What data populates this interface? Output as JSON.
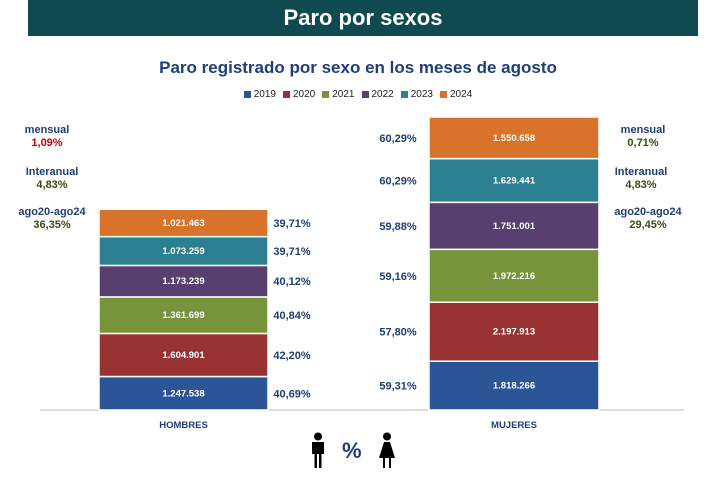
{
  "header": {
    "title": "Paro por sexos"
  },
  "chart_data": {
    "type": "bar",
    "title": "Paro registrado por sexo en los meses de agosto",
    "categories": [
      "HOMBRES",
      "MUJERES"
    ],
    "series": [
      {
        "name": "2019",
        "color": "#2b5597",
        "values": [
          1247538,
          1818266
        ],
        "pct_hombres": "40,69%",
        "pct_mujeres": "59,31%",
        "labels": [
          "1.247.538",
          "1.818.266"
        ]
      },
      {
        "name": "2020",
        "color": "#993333",
        "values": [
          1604901,
          2197913
        ],
        "pct_hombres": "42,20%",
        "pct_mujeres": "57,80%",
        "labels": [
          "1.604.901",
          "2.197.913"
        ]
      },
      {
        "name": "2021",
        "color": "#77933c",
        "values": [
          1361699,
          1972216
        ],
        "pct_hombres": "40,84%",
        "pct_mujeres": "59,16%",
        "labels": [
          "1.361.699",
          "1.972.216"
        ]
      },
      {
        "name": "2022",
        "color": "#574070",
        "values": [
          1173239,
          1751001
        ],
        "pct_hombres": "40,12%",
        "pct_mujeres": "59,88%",
        "labels": [
          "1.173.239",
          "1.751.001"
        ]
      },
      {
        "name": "2023",
        "color": "#2b7f90",
        "values": [
          1073259,
          1629441
        ],
        "pct_hombres": "39,71%",
        "pct_mujeres": "60,29%",
        "labels": [
          "1.073.259",
          "1.629.441"
        ]
      },
      {
        "name": "2024",
        "color": "#d9722a",
        "values": [
          1021463,
          1550658
        ],
        "pct_hombres": "39,71%",
        "pct_mujeres": "60,29%",
        "labels": [
          "1.021.463",
          "1.550.658"
        ]
      }
    ],
    "legend_position": "top",
    "grid": false
  },
  "stats": {
    "hombres": {
      "mensual_label": "mensual",
      "mensual_value": "1,09%",
      "interanual_label": "Interanual",
      "interanual_value": "4,83%",
      "periodo_label": "ago20-ago24",
      "periodo_value": "36,35%"
    },
    "mujeres": {
      "mensual_label": "mensual",
      "mensual_value": "0,71%",
      "interanual_label": "Interanual",
      "interanual_value": "4,83%",
      "periodo_label": "ago20-ago24",
      "periodo_value": "29,45%"
    }
  },
  "footer": {
    "percent_symbol": "%"
  }
}
